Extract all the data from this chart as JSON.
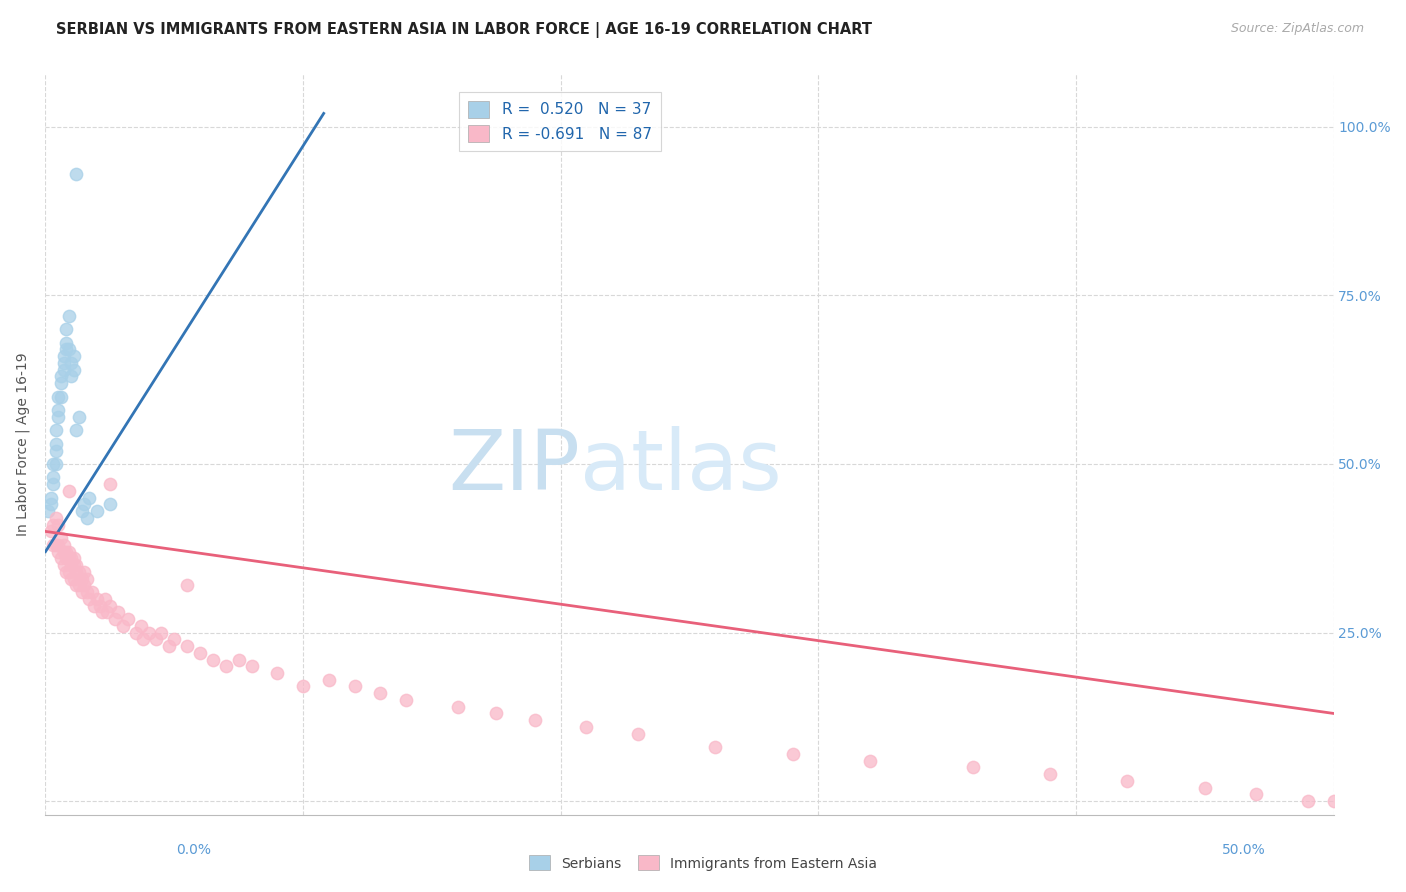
{
  "title": "SERBIAN VS IMMIGRANTS FROM EASTERN ASIA IN LABOR FORCE | AGE 16-19 CORRELATION CHART",
  "source": "Source: ZipAtlas.com",
  "ylabel": "In Labor Force | Age 16-19",
  "xlim": [
    0.0,
    0.5
  ],
  "ylim": [
    -0.02,
    1.08
  ],
  "blue_color": "#a8d0e8",
  "pink_color": "#f9b8c8",
  "blue_line_color": "#3375b5",
  "pink_line_color": "#e8607a",
  "watermark_zip": "ZIP",
  "watermark_atlas": "atlas",
  "serbians_label": "Serbians",
  "eastern_asia_label": "Immigrants from Eastern Asia",
  "blue_scatter_x": [
    0.001,
    0.002,
    0.002,
    0.003,
    0.003,
    0.003,
    0.004,
    0.004,
    0.004,
    0.004,
    0.005,
    0.005,
    0.005,
    0.006,
    0.006,
    0.006,
    0.007,
    0.007,
    0.007,
    0.008,
    0.008,
    0.008,
    0.009,
    0.009,
    0.01,
    0.01,
    0.011,
    0.011,
    0.012,
    0.013,
    0.014,
    0.015,
    0.016,
    0.017,
    0.02,
    0.025,
    0.012
  ],
  "blue_scatter_y": [
    0.43,
    0.45,
    0.44,
    0.48,
    0.5,
    0.47,
    0.52,
    0.55,
    0.53,
    0.5,
    0.57,
    0.6,
    0.58,
    0.62,
    0.63,
    0.6,
    0.65,
    0.66,
    0.64,
    0.68,
    0.67,
    0.7,
    0.67,
    0.72,
    0.63,
    0.65,
    0.64,
    0.66,
    0.55,
    0.57,
    0.43,
    0.44,
    0.42,
    0.45,
    0.43,
    0.44,
    0.93
  ],
  "pink_scatter_x": [
    0.002,
    0.003,
    0.003,
    0.004,
    0.004,
    0.005,
    0.005,
    0.005,
    0.006,
    0.006,
    0.007,
    0.007,
    0.007,
    0.008,
    0.008,
    0.008,
    0.009,
    0.009,
    0.009,
    0.01,
    0.01,
    0.01,
    0.011,
    0.011,
    0.011,
    0.012,
    0.012,
    0.012,
    0.013,
    0.013,
    0.014,
    0.014,
    0.015,
    0.015,
    0.016,
    0.016,
    0.017,
    0.018,
    0.019,
    0.02,
    0.021,
    0.022,
    0.023,
    0.024,
    0.025,
    0.027,
    0.028,
    0.03,
    0.032,
    0.035,
    0.037,
    0.04,
    0.043,
    0.045,
    0.048,
    0.05,
    0.055,
    0.06,
    0.065,
    0.07,
    0.075,
    0.08,
    0.09,
    0.1,
    0.11,
    0.12,
    0.13,
    0.14,
    0.16,
    0.175,
    0.19,
    0.21,
    0.23,
    0.26,
    0.29,
    0.32,
    0.36,
    0.39,
    0.42,
    0.45,
    0.47,
    0.49,
    0.5,
    0.038,
    0.055,
    0.025,
    0.009
  ],
  "pink_scatter_y": [
    0.4,
    0.38,
    0.41,
    0.38,
    0.42,
    0.38,
    0.37,
    0.41,
    0.36,
    0.39,
    0.37,
    0.35,
    0.38,
    0.36,
    0.37,
    0.34,
    0.36,
    0.34,
    0.37,
    0.35,
    0.33,
    0.36,
    0.35,
    0.33,
    0.36,
    0.34,
    0.32,
    0.35,
    0.32,
    0.34,
    0.33,
    0.31,
    0.32,
    0.34,
    0.31,
    0.33,
    0.3,
    0.31,
    0.29,
    0.3,
    0.29,
    0.28,
    0.3,
    0.28,
    0.29,
    0.27,
    0.28,
    0.26,
    0.27,
    0.25,
    0.26,
    0.25,
    0.24,
    0.25,
    0.23,
    0.24,
    0.23,
    0.22,
    0.21,
    0.2,
    0.21,
    0.2,
    0.19,
    0.17,
    0.18,
    0.17,
    0.16,
    0.15,
    0.14,
    0.13,
    0.12,
    0.11,
    0.1,
    0.08,
    0.07,
    0.06,
    0.05,
    0.04,
    0.03,
    0.02,
    0.01,
    0.0,
    0.0,
    0.24,
    0.32,
    0.47,
    0.46
  ],
  "blue_line_x": [
    0.0,
    0.108
  ],
  "blue_line_y": [
    0.37,
    1.02
  ],
  "pink_line_x": [
    0.0,
    0.5
  ],
  "pink_line_y": [
    0.4,
    0.13
  ],
  "title_fontsize": 10.5,
  "source_fontsize": 9,
  "label_fontsize": 10,
  "tick_fontsize": 10,
  "watermark_fontsize": 60,
  "watermark_color_zip": "#c8dff0",
  "watermark_color_atlas": "#d8eaf8",
  "right_tick_color": "#5b9bd5",
  "legend_color": "#2166ac",
  "background_color": "#ffffff",
  "grid_color": "#d8d8d8"
}
